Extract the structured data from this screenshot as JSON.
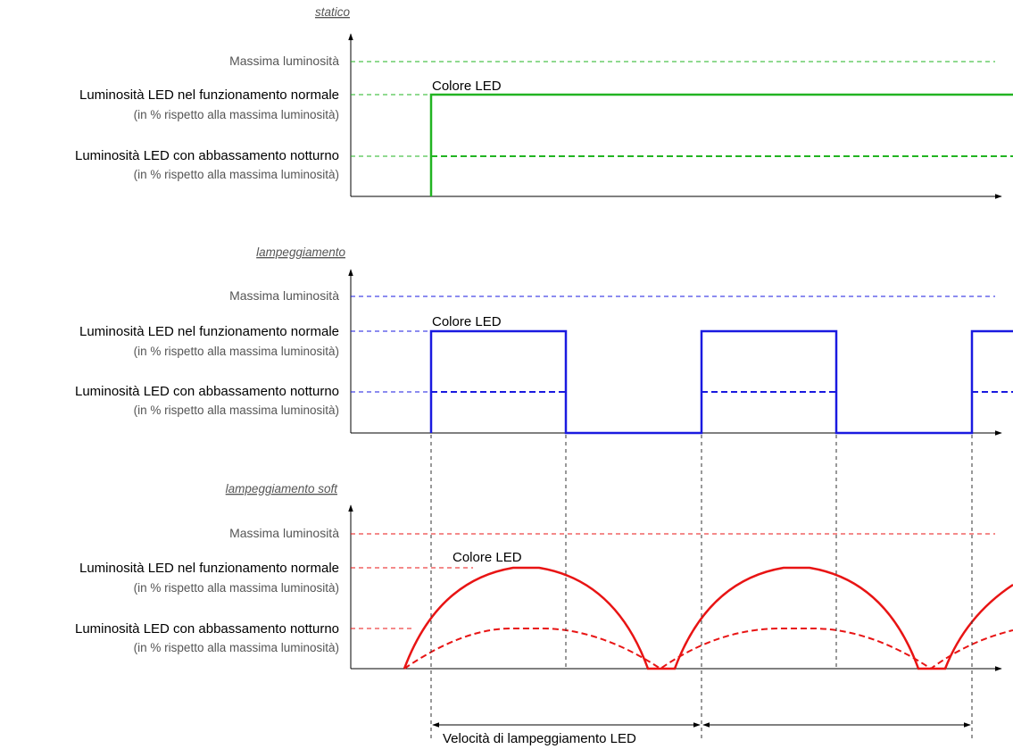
{
  "colors": {
    "static": "#22b422",
    "blink": "#1a1ae0",
    "soft": "#e81414",
    "axis": "#000000",
    "guide": "#333333"
  },
  "panels": [
    {
      "id": "static",
      "title": "statico",
      "label_max": "Massima luminosità",
      "label_normal": "Luminosità LED nel funzionamento normale",
      "label_normal_sub": "(in % rispetto alla massima luminosità)",
      "label_night": "Luminosità LED con abbassamento notturno",
      "label_night_sub": "(in % rispetto alla massima luminosità)",
      "led_label": "Colore LED",
      "color": "#22b422",
      "waveform": "static"
    },
    {
      "id": "blink",
      "title": "lampeggiamento",
      "label_max": "Massima luminosità",
      "label_normal": "Luminosità LED nel funzionamento normale",
      "label_normal_sub": "(in % rispetto alla massima luminosità)",
      "label_night": "Luminosità LED con abbassamento notturno",
      "label_night_sub": "(in % rispetto alla massima luminosità)",
      "led_label": "Colore LED",
      "color": "#1a1ae0",
      "waveform": "square"
    },
    {
      "id": "soft",
      "title": "lampeggiamento soft",
      "label_max": "Massima luminosità",
      "label_normal": "Luminosità LED nel funzionamento normale",
      "label_normal_sub": "(in % rispetto alla massima luminosità)",
      "label_night": "Luminosità LED con abbassamento notturno",
      "label_night_sub": "(in % rispetto alla massima luminosità)",
      "led_label": "Colore LED",
      "color": "#e81414",
      "waveform": "soft"
    }
  ],
  "speed_label": "Velocità di lampeggiamento LED"
}
